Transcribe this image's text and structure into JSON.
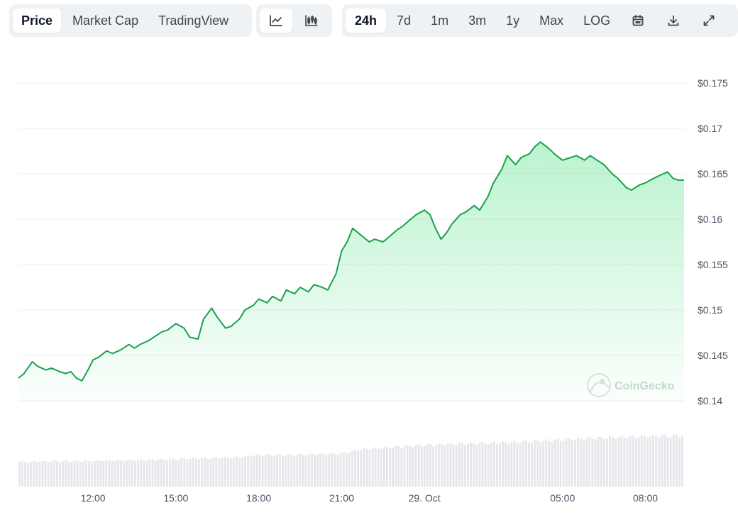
{
  "toolbar": {
    "type_tabs": [
      {
        "label": "Price",
        "active": true
      },
      {
        "label": "Market Cap",
        "active": false
      },
      {
        "label": "TradingView",
        "active": false
      }
    ],
    "view_icons": [
      {
        "icon": "line-chart-icon",
        "active": true
      },
      {
        "icon": "candlestick-chart-icon",
        "active": false
      }
    ],
    "ranges": [
      {
        "label": "24h",
        "active": true
      },
      {
        "label": "7d",
        "active": false
      },
      {
        "label": "1m",
        "active": false
      },
      {
        "label": "3m",
        "active": false
      },
      {
        "label": "1y",
        "active": false
      },
      {
        "label": "Max",
        "active": false
      },
      {
        "label": "LOG",
        "active": false
      }
    ],
    "actions": [
      "calendar-icon",
      "download-icon",
      "expand-icon"
    ]
  },
  "watermark": "CoinGecko",
  "colors": {
    "line": "#16a34a",
    "fill_top": "#4ade80",
    "grid": "#eef0f3",
    "volume": "#e5e7eb",
    "active_bg": "#ffffff",
    "group_bg": "#eff2f5"
  },
  "chart_data": {
    "type": "area",
    "title": "",
    "xlabel": "",
    "ylabel": "",
    "ylim": [
      0.14,
      0.175
    ],
    "y_ticks": [
      0.14,
      0.145,
      0.15,
      0.155,
      0.16,
      0.165,
      0.17,
      0.175
    ],
    "y_tick_labels": [
      "$0.14",
      "$0.145",
      "$0.15",
      "$0.155",
      "$0.16",
      "$0.165",
      "$0.17",
      "$0.175"
    ],
    "x_range_hours": [
      9.3,
      33.4
    ],
    "x_ticks": [
      {
        "label": "12:00",
        "hour": 12
      },
      {
        "label": "15:00",
        "hour": 15
      },
      {
        "label": "18:00",
        "hour": 18
      },
      {
        "label": "21:00",
        "hour": 21
      },
      {
        "label": "29. Oct",
        "hour": 24
      },
      {
        "label": "05:00",
        "hour": 29
      },
      {
        "label": "08:00",
        "hour": 32
      }
    ],
    "grid": true,
    "series": [
      {
        "x": [
          9.3,
          9.5,
          9.8,
          10.0,
          10.3,
          10.5,
          10.8,
          11.0,
          11.2,
          11.4,
          11.6,
          11.8,
          12.0,
          12.2,
          12.5,
          12.7,
          13.0,
          13.3,
          13.5,
          13.7,
          14.0,
          14.3,
          14.5,
          14.7,
          15.0,
          15.3,
          15.5,
          15.8,
          16.0,
          16.3,
          16.5,
          16.8,
          17.0,
          17.3,
          17.5,
          17.8,
          18.0,
          18.3,
          18.5,
          18.8,
          19.0,
          19.3,
          19.5,
          19.8,
          20.0,
          20.3,
          20.5,
          20.8,
          21.0,
          21.2,
          21.4,
          21.6,
          21.8,
          22.0,
          22.2,
          22.5,
          22.7,
          23.0,
          23.2,
          23.5,
          23.7,
          24.0,
          24.2,
          24.4,
          24.6,
          24.8,
          25.0,
          25.3,
          25.5,
          25.8,
          26.0,
          26.3,
          26.5,
          26.8,
          27.0,
          27.3,
          27.5,
          27.8,
          28.0,
          28.2,
          28.5,
          28.7,
          29.0,
          29.3,
          29.5,
          29.8,
          30.0,
          30.3,
          30.5,
          30.8,
          31.0,
          31.3,
          31.5,
          31.8,
          32.0,
          32.3,
          32.5,
          32.8,
          33.0,
          33.2,
          33.4
        ],
        "values": [
          0.1425,
          0.143,
          0.1443,
          0.1438,
          0.1434,
          0.1436,
          0.1432,
          0.143,
          0.1432,
          0.1425,
          0.1422,
          0.1433,
          0.1445,
          0.1448,
          0.1455,
          0.1452,
          0.1456,
          0.1462,
          0.1458,
          0.1462,
          0.1466,
          0.1472,
          0.1476,
          0.1478,
          0.1485,
          0.148,
          0.147,
          0.1468,
          0.149,
          0.1502,
          0.1492,
          0.148,
          0.1482,
          0.149,
          0.15,
          0.1505,
          0.1512,
          0.1508,
          0.1515,
          0.151,
          0.1522,
          0.1518,
          0.1525,
          0.152,
          0.1528,
          0.1525,
          0.1522,
          0.154,
          0.1565,
          0.1575,
          0.159,
          0.1585,
          0.158,
          0.1575,
          0.1578,
          0.1575,
          0.158,
          0.1588,
          0.1592,
          0.16,
          0.1605,
          0.161,
          0.1605,
          0.159,
          0.1578,
          0.1585,
          0.1595,
          0.1605,
          0.1608,
          0.1615,
          0.161,
          0.1625,
          0.164,
          0.1655,
          0.167,
          0.166,
          0.1668,
          0.1672,
          0.168,
          0.1685,
          0.1678,
          0.1672,
          0.1665,
          0.1668,
          0.167,
          0.1665,
          0.167,
          0.1664,
          0.166,
          0.165,
          0.1645,
          0.1635,
          0.1632,
          0.1638,
          0.164,
          0.1645,
          0.1648,
          0.1652,
          0.1645,
          0.1643,
          0.1643
        ]
      }
    ],
    "volume": {
      "x": [
        9.3,
        11.0,
        13.0,
        15.0,
        17.0,
        18.0,
        19.0,
        20.0,
        21.0,
        21.6,
        22.0,
        23.0,
        24.0,
        25.0,
        26.0,
        27.0,
        28.0,
        29.0,
        30.0,
        31.0,
        32.0,
        33.4
      ],
      "values": [
        0.36,
        0.37,
        0.38,
        0.4,
        0.42,
        0.46,
        0.46,
        0.47,
        0.48,
        0.53,
        0.55,
        0.58,
        0.6,
        0.62,
        0.63,
        0.64,
        0.66,
        0.68,
        0.7,
        0.72,
        0.73,
        0.74
      ]
    }
  }
}
